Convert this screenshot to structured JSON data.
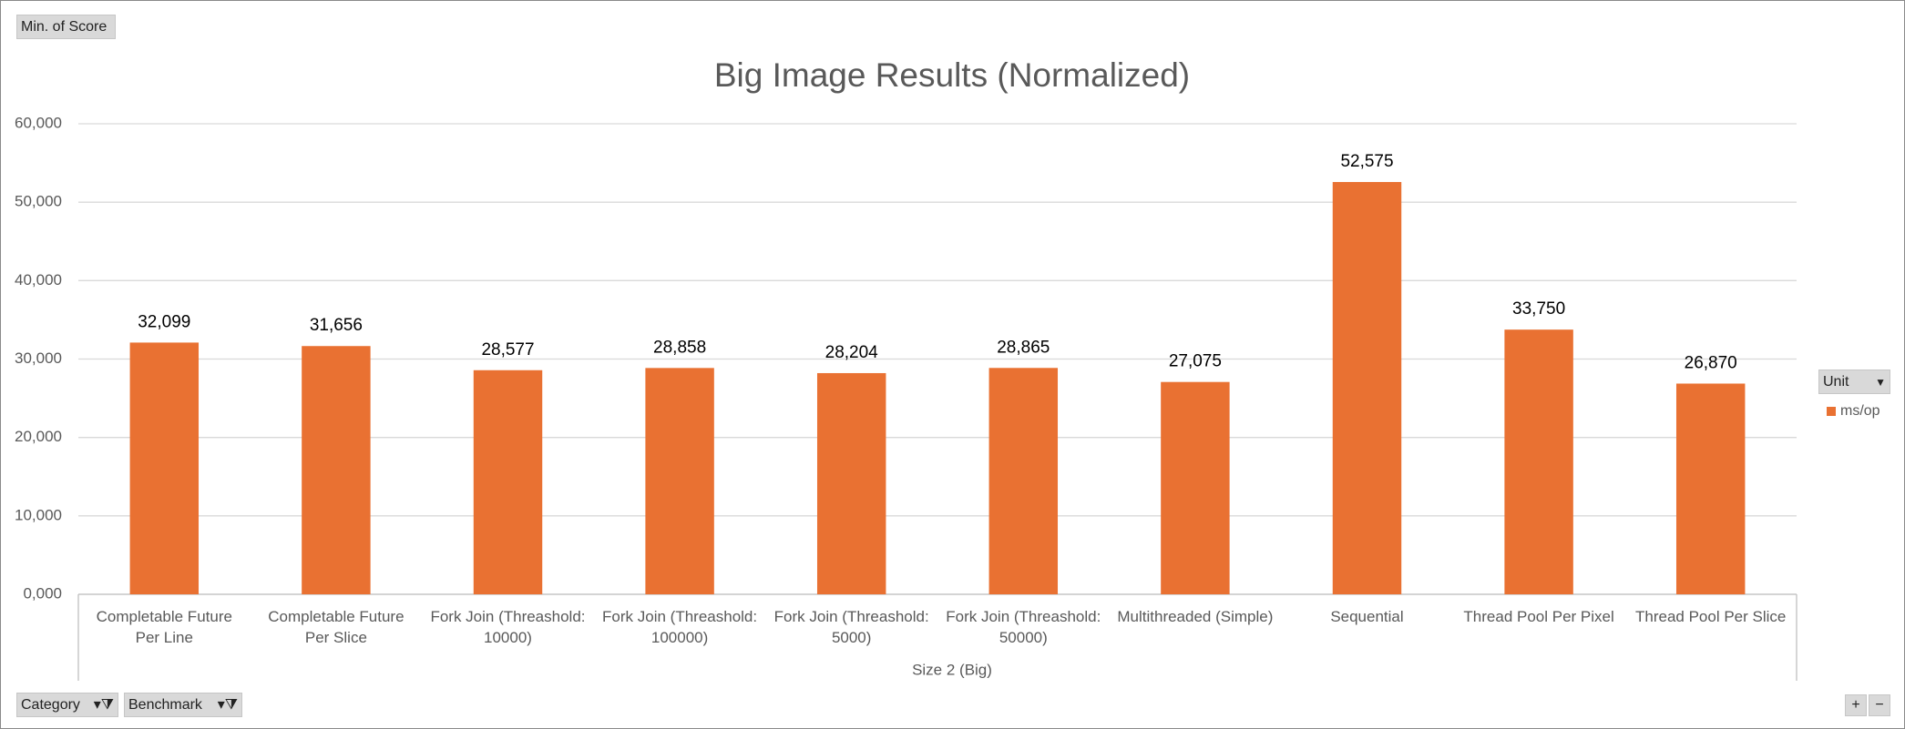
{
  "chart_data": {
    "type": "bar",
    "title": "Big Image Results (Normalized)",
    "categories": [
      "Completable Future Per Line",
      "Completable Future Per Slice",
      "Fork Join (Threashold: 10000)",
      "Fork Join (Threashold: 100000)",
      "Fork Join (Threashold: 5000)",
      "Fork Join (Threashold: 50000)",
      "Multithreaded (Simple)",
      "Sequential",
      "Thread Pool Per Pixel",
      "Thread Pool Per Slice"
    ],
    "series": [
      {
        "name": "ms/op",
        "color": "#e97132",
        "values": [
          32099,
          31656,
          28577,
          28858,
          28204,
          28865,
          27075,
          52575,
          33750,
          26870
        ],
        "value_labels": [
          "32,099",
          "31,656",
          "28,577",
          "28,858",
          "28,204",
          "28,865",
          "27,075",
          "52,575",
          "33,750",
          "26,870"
        ]
      }
    ],
    "x_group_label": "Size 2 (Big)",
    "legend_title": "Unit",
    "legend": "right",
    "ylim": [
      0,
      60000
    ],
    "yticks": [
      {
        "value": 0,
        "label": "0,000"
      },
      {
        "value": 10000,
        "label": "10,000"
      },
      {
        "value": 20000,
        "label": "20,000"
      },
      {
        "value": 30000,
        "label": "30,000"
      },
      {
        "value": 40000,
        "label": "40,000"
      },
      {
        "value": 50000,
        "label": "50,000"
      },
      {
        "value": 60000,
        "label": "60,000"
      }
    ],
    "grid": true
  },
  "pivot_fields": {
    "value_field": "Min. of Score",
    "axis_fields": [
      "Category",
      "Benchmark"
    ]
  },
  "zoom_buttons": [
    "+",
    "−"
  ]
}
